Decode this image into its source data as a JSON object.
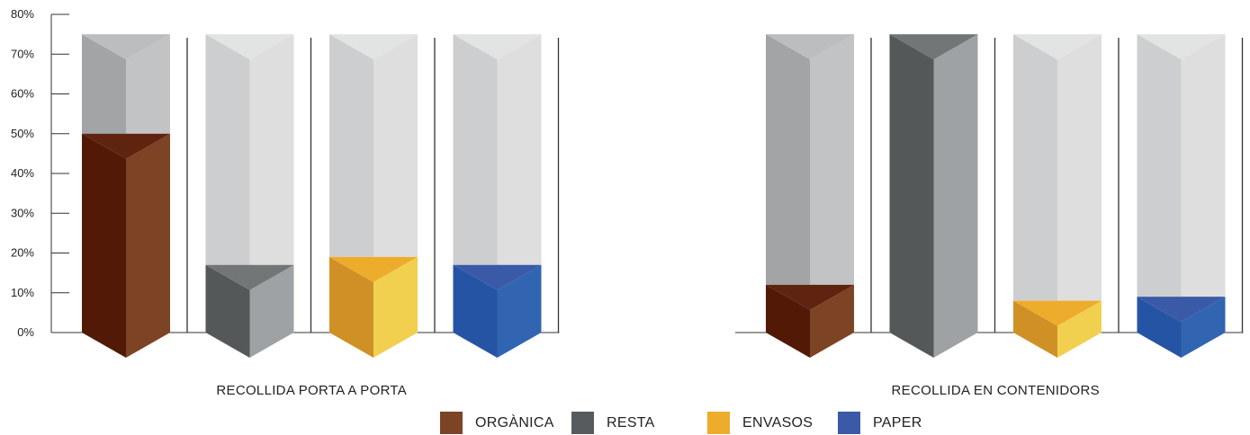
{
  "chart_data": {
    "type": "bar",
    "title": "",
    "xlabel": "",
    "ylabel": "",
    "ylim": [
      0,
      80
    ],
    "yticks": [
      "0%",
      "10%",
      "20%",
      "30%",
      "40%",
      "50%",
      "60%",
      "70%",
      "80%"
    ],
    "y_units": "percent",
    "groups": [
      "RECOLLIDA PORTA A PORTA",
      "RECOLLIDA EN CONTENIDORS"
    ],
    "series": [
      {
        "name": "ORGÀNICA",
        "values": [
          50,
          12
        ]
      },
      {
        "name": "RESTA",
        "values": [
          17,
          75
        ]
      },
      {
        "name": "ENVASOS",
        "values": [
          19,
          8
        ]
      },
      {
        "name": "PAPER",
        "values": [
          17,
          9
        ]
      }
    ],
    "background_bar_value": 75,
    "legend_position": "bottom",
    "grid": false
  },
  "colors": {
    "ORGÀNICA": {
      "light": "#7d4325",
      "dark": "#521907",
      "top": "#5e2410"
    },
    "RESTA": {
      "light": "#9fa2a4",
      "dark": "#545859",
      "top": "#737677"
    },
    "ENVASOS": {
      "light": "#f1d050",
      "dark": "#cf9126",
      "top": "#eeac2c"
    },
    "PAPER": {
      "light": "#3165b2",
      "dark": "#2654a4",
      "top": "#3a5aa8"
    },
    "bg_light": "#dededf",
    "bg_dark": "#cdcecf",
    "bg_top": "#e2e3e3",
    "bg_full_light": "#c2c3c4",
    "bg_full_dark": "#a2a4a6",
    "bg_full_top": "#bcbdbe",
    "axis": "#333333"
  }
}
